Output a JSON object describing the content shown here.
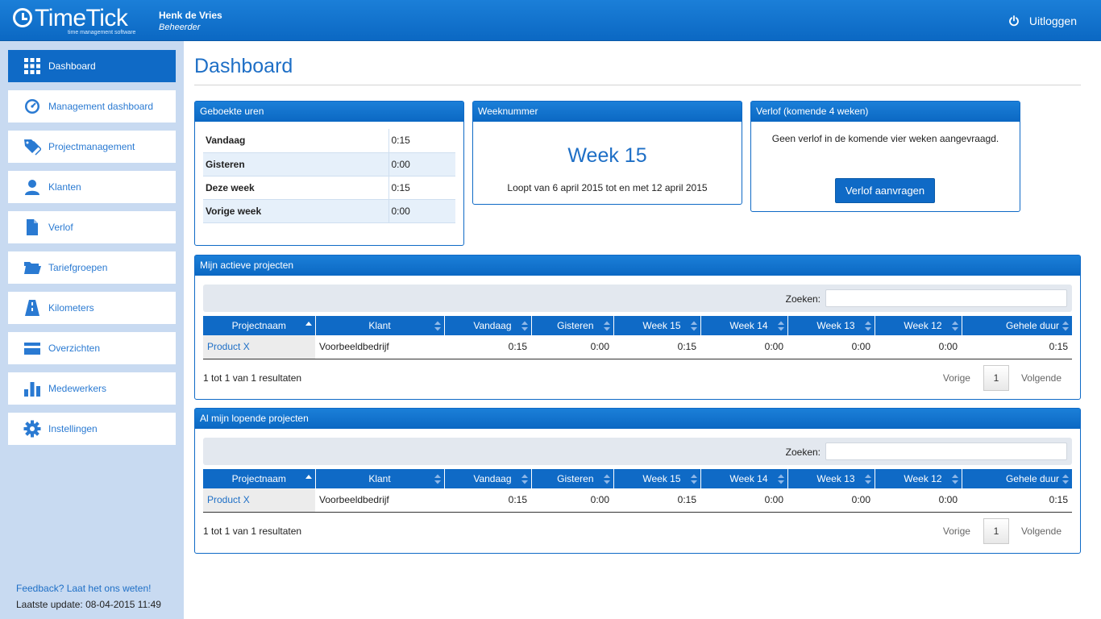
{
  "header": {
    "logo_text": "TimeTick",
    "logo_sub": "time management software",
    "user_name": "Henk de Vries",
    "user_role": "Beheerder",
    "logout_label": "Uitloggen"
  },
  "sidebar": {
    "items": [
      {
        "label": "Dashboard",
        "icon": "grid-icon"
      },
      {
        "label": "Management dashboard",
        "icon": "gauge-icon"
      },
      {
        "label": "Projectmanagement",
        "icon": "tags-icon"
      },
      {
        "label": "Klanten",
        "icon": "user-icon"
      },
      {
        "label": "Verlof",
        "icon": "document-icon"
      },
      {
        "label": "Tariefgroepen",
        "icon": "folder-icon"
      },
      {
        "label": "Kilometers",
        "icon": "road-icon"
      },
      {
        "label": "Overzichten",
        "icon": "card-icon"
      },
      {
        "label": "Medewerkers",
        "icon": "bar-chart-icon"
      },
      {
        "label": "Instellingen",
        "icon": "gear-icon"
      }
    ],
    "feedback": "Feedback? Laat het ons weten!",
    "last_update": "Laatste update: 08-04-2015 11:49"
  },
  "main": {
    "title": "Dashboard",
    "booked": {
      "title": "Geboekte uren",
      "rows": [
        {
          "label": "Vandaag",
          "value": "0:15"
        },
        {
          "label": "Gisteren",
          "value": "0:00"
        },
        {
          "label": "Deze week",
          "value": "0:15"
        },
        {
          "label": "Vorige week",
          "value": "0:00"
        }
      ]
    },
    "week": {
      "title": "Weeknummer",
      "number": "Week 15",
      "range": "Loopt van 6 april 2015 tot en met 12 april 2015"
    },
    "leave": {
      "title": "Verlof (komende 4 weken)",
      "text": "Geen verlof in de komende vier weken aangevraagd.",
      "button": "Verlof aanvragen"
    },
    "projects": [
      {
        "title": "Mijn actieve projecten",
        "search_label": "Zoeken:",
        "search_value": "",
        "columns": [
          "Projectnaam",
          "Klant",
          "Vandaag",
          "Gisteren",
          "Week 15",
          "Week 14",
          "Week 13",
          "Week 12",
          "Gehele duur"
        ],
        "rows": [
          [
            "Product X",
            "Voorbeeldbedrijf",
            "0:15",
            "0:00",
            "0:15",
            "0:00",
            "0:00",
            "0:00",
            "0:15"
          ]
        ],
        "result": "1 tot 1 van 1 resultaten",
        "prev": "Vorige",
        "page": "1",
        "next": "Volgende"
      },
      {
        "title": "Al mijn lopende projecten",
        "search_label": "Zoeken:",
        "search_value": "",
        "columns": [
          "Projectnaam",
          "Klant",
          "Vandaag",
          "Gisteren",
          "Week 15",
          "Week 14",
          "Week 13",
          "Week 12",
          "Gehele duur"
        ],
        "rows": [
          [
            "Product X",
            "Voorbeeldbedrijf",
            "0:15",
            "0:00",
            "0:15",
            "0:00",
            "0:00",
            "0:00",
            "0:15"
          ]
        ],
        "result": "1 tot 1 van 1 resultaten",
        "prev": "Vorige",
        "page": "1",
        "next": "Volgende"
      }
    ]
  },
  "colors": {
    "brand": "#0f6ac6",
    "sidebar_bg": "#c8daf1",
    "link": "#1e6fc6"
  }
}
